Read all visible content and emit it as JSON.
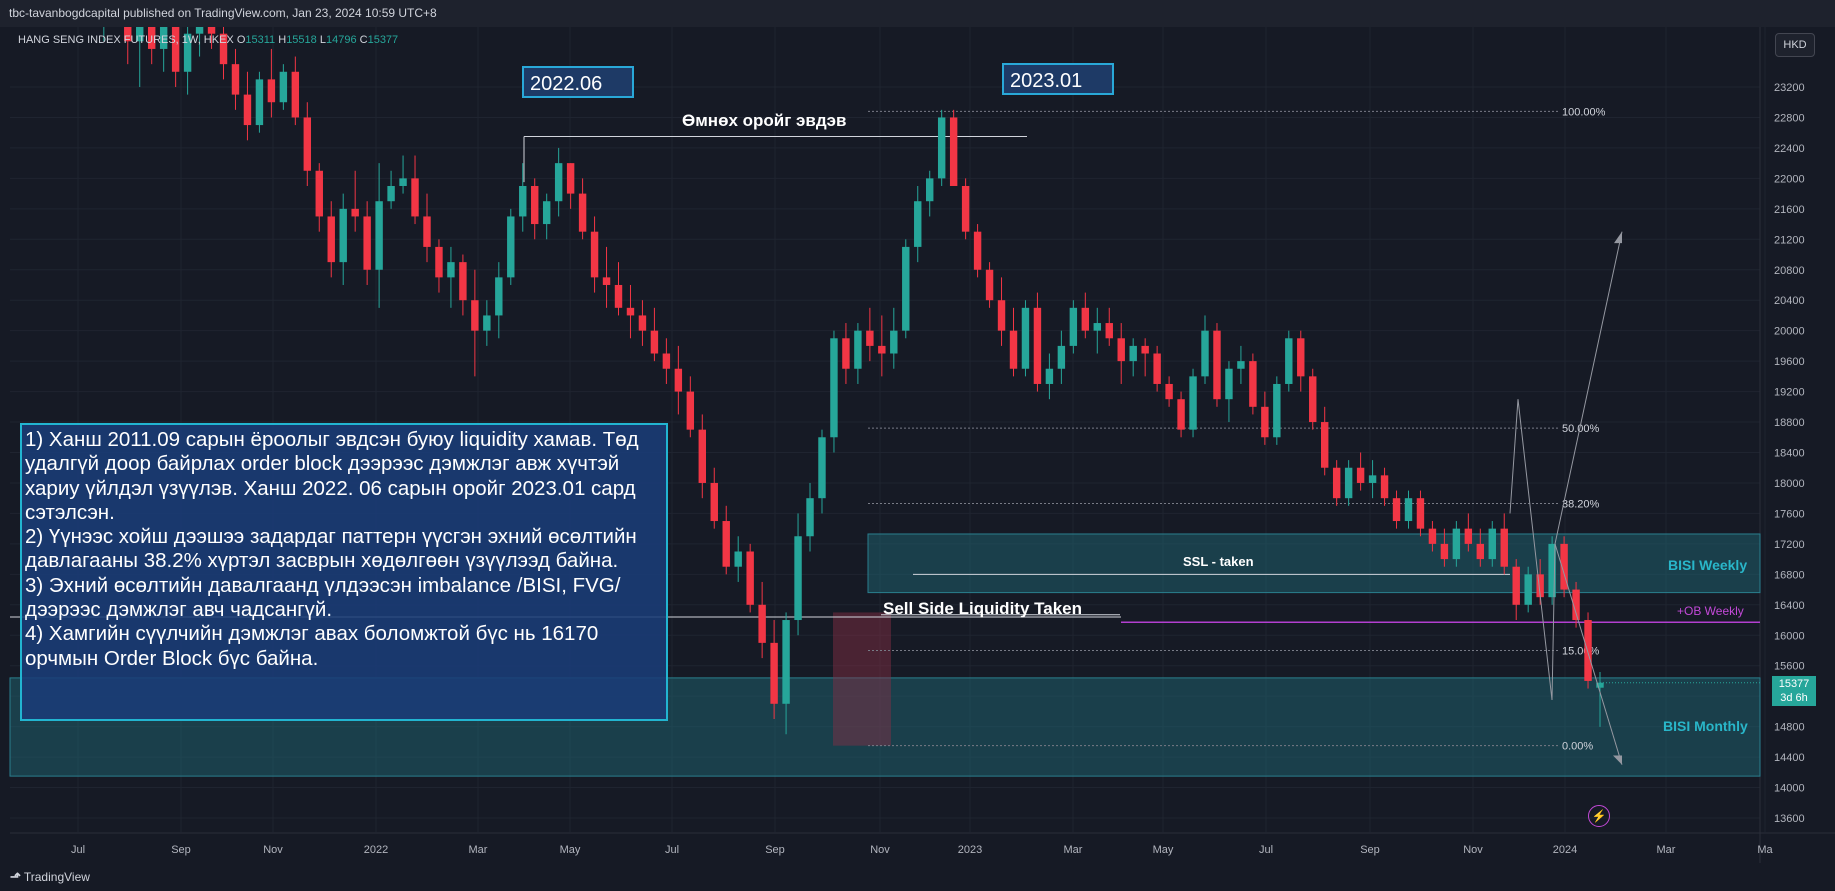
{
  "header": {
    "publisher_line": "tbc-tavanbogdcapital published on TradingView.com, Jan 23, 2024 10:59 UTC+8"
  },
  "legend": {
    "symbol": "HANG SENG INDEX FUTURES, 1W, HKEX",
    "o_label": "O",
    "o_value": "15311",
    "h_label": "H",
    "h_value": "15518",
    "l_label": "L",
    "l_value": "14796",
    "c_label": "C",
    "c_value": "15377"
  },
  "currency": "HKD",
  "colors": {
    "up": "#26a69a",
    "down": "#f23645",
    "zone": "#1f5f6b",
    "ob": "#b33fd0",
    "accent_text": "#29b6c9"
  },
  "annotations": {
    "date_2022": "2022.06",
    "date_2023": "2023.01",
    "prev_high_broken": "Өмнөх оройг эвдэв",
    "ssl_taken": "SSL - taken",
    "sell_side_taken": "Sell Side Liquidity Taken",
    "bisi_weekly": "BISI Weekly",
    "ob_weekly": "+OB Weekly",
    "bisi_monthly": "BISI Monthly"
  },
  "notes": [
    "1) Ханш 2011.09 сарын ёроолыг эвдсэн буюу liquidity хамав. Төд удалгүй доор байрлах order block дээрээс дэмжлэг авж хүчтэй хариу үйлдэл үзүүлэв. Ханш 2022. 06 сарын оройг 2023.01 сард сэтэлсэн.",
    "2) Үүнээс хойш дээшээ задардаг паттерн үүсгэн эхний өсөлтийн давлагааны 38.2% хүртэл засврын хөдөлгөөн үзүүлээд байна.",
    "3) Эхний өсөлтийн давалгаанд үлдээсэн imbalance /BISI, FVG/ дээрээс дэмжлэг авч чадсангүй.",
    "4) Хамгийн сүүлчийн дэмжлэг авах боломжтой бүс нь 16170 орчмын Order Block бүс байна."
  ],
  "price_tag": {
    "price": "15377",
    "countdown": "3d 6h"
  },
  "footer": {
    "brand": "TradingView"
  },
  "chart_data": {
    "type": "candlestick",
    "title": "HANG SENG INDEX FUTURES, 1W, HKEX",
    "ylim": [
      13400,
      23500
    ],
    "y_ticks": [
      13600,
      14000,
      14400,
      14800,
      15200,
      15600,
      16000,
      16400,
      16800,
      17200,
      17600,
      18000,
      18400,
      18800,
      19200,
      19600,
      20000,
      20400,
      20800,
      21200,
      21600,
      22000,
      22400,
      22800,
      23200
    ],
    "x_labels": [
      "Jul",
      "Sep",
      "Nov",
      "2022",
      "Mar",
      "May",
      "Jul",
      "Sep",
      "Nov",
      "2023",
      "Mar",
      "May",
      "Jul",
      "Sep",
      "Nov",
      "2024",
      "Mar",
      "Ma"
    ],
    "fib_levels": [
      {
        "label": "100.00%",
        "price": 22880
      },
      {
        "label": "50.00%",
        "price": 18720
      },
      {
        "label": "38.20%",
        "price": 17730
      },
      {
        "label": "15.00%",
        "price": 15800
      },
      {
        "label": "0.00%",
        "price": 14550
      }
    ],
    "zones": [
      {
        "label": "BISI Weekly",
        "from": 16560,
        "to": 17330
      },
      {
        "label": "BISI Monthly",
        "from": 14150,
        "to": 15440
      }
    ],
    "levels": [
      {
        "label": "+OB Weekly",
        "price": 16170
      },
      {
        "label": "SSL - taken",
        "price": 16800
      },
      {
        "label": "Sell Side Liquidity Taken",
        "price": 16170
      },
      {
        "label": "Өмнөх оройг эвдэв",
        "price": 22550
      }
    ],
    "candles_ohlc": [
      [
        29700,
        30000,
        26800,
        27000
      ],
      [
        27300,
        28400,
        27000,
        28100
      ],
      [
        28100,
        28200,
        25600,
        25800
      ],
      [
        25800,
        26200,
        24600,
        24800
      ],
      [
        24800,
        25600,
        24400,
        25400
      ],
      [
        25400,
        25700,
        24100,
        24300
      ],
      [
        24300,
        25200,
        23800,
        25000
      ],
      [
        25000,
        25500,
        24300,
        24600
      ],
      [
        24600,
        24900,
        23500,
        23800
      ],
      [
        23800,
        24300,
        23200,
        24000
      ],
      [
        24000,
        24500,
        23500,
        23700
      ],
      [
        23700,
        24300,
        23400,
        24100
      ],
      [
        24100,
        24400,
        23200,
        23400
      ],
      [
        23400,
        24000,
        23100,
        23900
      ],
      [
        23900,
        24700,
        23600,
        24400
      ],
      [
        24400,
        24500,
        23700,
        23900
      ],
      [
        23900,
        24200,
        23300,
        23500
      ],
      [
        23500,
        23700,
        22900,
        23100
      ],
      [
        23100,
        23400,
        22500,
        22700
      ],
      [
        22700,
        23400,
        22600,
        23300
      ],
      [
        23300,
        23700,
        22800,
        23000
      ],
      [
        23000,
        23500,
        22900,
        23400
      ],
      [
        23400,
        23600,
        22700,
        22800
      ],
      [
        22800,
        23000,
        21900,
        22100
      ],
      [
        22100,
        22200,
        21300,
        21500
      ],
      [
        21500,
        21700,
        20700,
        20900
      ],
      [
        20900,
        21800,
        20600,
        21600
      ],
      [
        21600,
        22100,
        21300,
        21500
      ],
      [
        21500,
        21700,
        20600,
        20800
      ],
      [
        20800,
        22200,
        20300,
        21700
      ],
      [
        21700,
        22100,
        21600,
        21900
      ],
      [
        21900,
        22300,
        21800,
        22000
      ],
      [
        22000,
        22300,
        21400,
        21500
      ],
      [
        21500,
        21800,
        20900,
        21100
      ],
      [
        21100,
        21200,
        20500,
        20700
      ],
      [
        20700,
        21100,
        20300,
        20900
      ],
      [
        20900,
        21000,
        20200,
        20400
      ],
      [
        20400,
        20800,
        19400,
        20000
      ],
      [
        20000,
        20400,
        19800,
        20200
      ],
      [
        20200,
        20900,
        19900,
        20700
      ],
      [
        20700,
        21600,
        20600,
        21500
      ],
      [
        21500,
        22200,
        21300,
        21900
      ],
      [
        21900,
        22000,
        21200,
        21400
      ],
      [
        21400,
        21800,
        21200,
        21700
      ],
      [
        21700,
        22400,
        21500,
        22200
      ],
      [
        22200,
        22200,
        21600,
        21800
      ],
      [
        21800,
        22000,
        21200,
        21300
      ],
      [
        21300,
        21500,
        20500,
        20700
      ],
      [
        20700,
        21100,
        20300,
        20600
      ],
      [
        20600,
        20900,
        20200,
        20300
      ],
      [
        20300,
        20600,
        19900,
        20200
      ],
      [
        20200,
        20400,
        19800,
        20000
      ],
      [
        20000,
        20300,
        19600,
        19700
      ],
      [
        19700,
        19900,
        19300,
        19500
      ],
      [
        19500,
        19800,
        18900,
        19200
      ],
      [
        19200,
        19400,
        18600,
        18700
      ],
      [
        18700,
        18900,
        17800,
        18000
      ],
      [
        18000,
        18200,
        17400,
        17500
      ],
      [
        17500,
        17700,
        16800,
        16900
      ],
      [
        16900,
        17300,
        16700,
        17100
      ],
      [
        17100,
        17200,
        16300,
        16400
      ],
      [
        16400,
        16700,
        15700,
        15900
      ],
      [
        15900,
        16200,
        14900,
        15100
      ],
      [
        15100,
        16300,
        14700,
        16200
      ],
      [
        16200,
        17600,
        16000,
        17300
      ],
      [
        17300,
        18000,
        17100,
        17800
      ],
      [
        17800,
        18700,
        17600,
        18600
      ],
      [
        18600,
        20000,
        18400,
        19900
      ],
      [
        19900,
        20100,
        19300,
        19500
      ],
      [
        19500,
        20100,
        19300,
        20000
      ],
      [
        20000,
        20300,
        19600,
        19800
      ],
      [
        19800,
        20200,
        19400,
        19700
      ],
      [
        19700,
        20300,
        19500,
        20000
      ],
      [
        20000,
        21200,
        19900,
        21100
      ],
      [
        21100,
        21900,
        20900,
        21700
      ],
      [
        21700,
        22100,
        21500,
        22000
      ],
      [
        22000,
        22900,
        21900,
        22800
      ],
      [
        22800,
        22900,
        21900,
        21900
      ],
      [
        21900,
        22000,
        21200,
        21300
      ],
      [
        21300,
        21400,
        20700,
        20800
      ],
      [
        20800,
        20900,
        20300,
        20400
      ],
      [
        20400,
        20700,
        19800,
        20000
      ],
      [
        20000,
        20300,
        19400,
        19500
      ],
      [
        19500,
        20400,
        19400,
        20300
      ],
      [
        20300,
        20500,
        19200,
        19300
      ],
      [
        19300,
        19700,
        19100,
        19500
      ],
      [
        19500,
        20000,
        19300,
        19800
      ],
      [
        19800,
        20400,
        19700,
        20300
      ],
      [
        20300,
        20500,
        19900,
        20000
      ],
      [
        20000,
        20300,
        19700,
        20100
      ],
      [
        20100,
        20300,
        19800,
        19900
      ],
      [
        19900,
        20100,
        19300,
        19600
      ],
      [
        19600,
        19900,
        19400,
        19800
      ],
      [
        19800,
        19900,
        19400,
        19700
      ],
      [
        19700,
        19800,
        19200,
        19300
      ],
      [
        19300,
        19400,
        19000,
        19100
      ],
      [
        19100,
        19200,
        18600,
        18700
      ],
      [
        18700,
        19500,
        18600,
        19400
      ],
      [
        19400,
        20200,
        19300,
        20000
      ],
      [
        20000,
        20100,
        19000,
        19100
      ],
      [
        19100,
        19600,
        18800,
        19500
      ],
      [
        19500,
        19800,
        19300,
        19600
      ],
      [
        19600,
        19700,
        18900,
        19000
      ],
      [
        19000,
        19200,
        18500,
        18600
      ],
      [
        18600,
        19400,
        18500,
        19300
      ],
      [
        19300,
        20000,
        19200,
        19900
      ],
      [
        19900,
        20000,
        19200,
        19400
      ],
      [
        19400,
        19500,
        18700,
        18800
      ],
      [
        18800,
        19000,
        18100,
        18200
      ],
      [
        18200,
        18300,
        17700,
        17800
      ],
      [
        17800,
        18300,
        17700,
        18200
      ],
      [
        18200,
        18400,
        17900,
        18000
      ],
      [
        18000,
        18300,
        17800,
        18100
      ],
      [
        18100,
        18200,
        17700,
        17800
      ],
      [
        17800,
        17900,
        17400,
        17500
      ],
      [
        17500,
        17900,
        17400,
        17800
      ],
      [
        17800,
        17900,
        17300,
        17400
      ],
      [
        17400,
        17500,
        17100,
        17200
      ],
      [
        17200,
        17400,
        16900,
        17000
      ],
      [
        17000,
        17500,
        16900,
        17400
      ],
      [
        17400,
        17600,
        17100,
        17200
      ],
      [
        17200,
        17400,
        16900,
        17000
      ],
      [
        17000,
        17500,
        16900,
        17400
      ],
      [
        17400,
        17600,
        16800,
        16900
      ],
      [
        16900,
        17000,
        16200,
        16400
      ],
      [
        16400,
        16900,
        16300,
        16800
      ],
      [
        16800,
        17000,
        16400,
        16500
      ],
      [
        16500,
        17300,
        16400,
        17200
      ],
      [
        17200,
        17300,
        16500,
        16600
      ],
      [
        16600,
        16700,
        16100,
        16200
      ],
      [
        16200,
        16300,
        15300,
        15400
      ],
      [
        15311,
        15518,
        14796,
        15377
      ]
    ],
    "projection_path": [
      [
        19200,
        15100
      ],
      [
        19300,
        19100
      ],
      [
        19350,
        15100
      ],
      [
        19400,
        17200
      ],
      [
        19500,
        21300
      ]
    ],
    "projection_path_down": [
      [
        19400,
        17200
      ],
      [
        19500,
        14300
      ]
    ]
  }
}
